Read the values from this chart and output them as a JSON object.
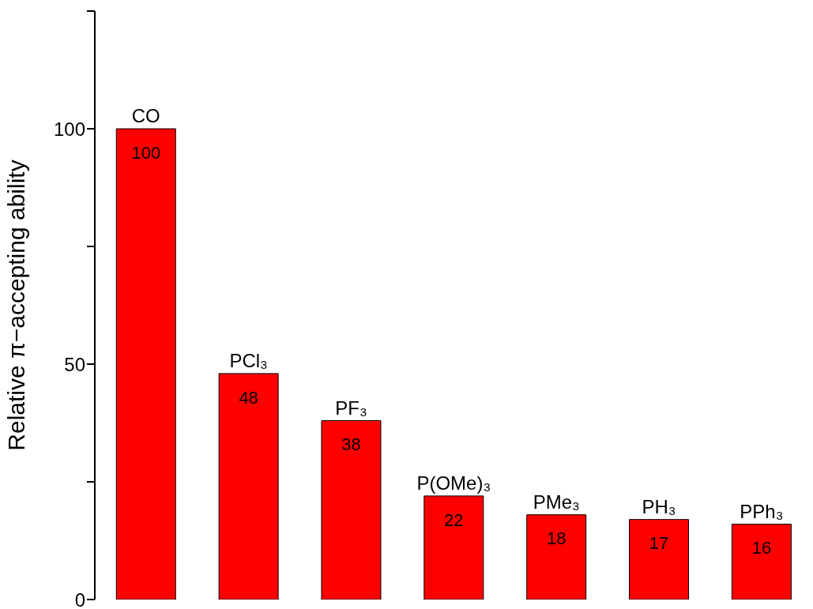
{
  "chart_data": {
    "type": "bar",
    "ylabel": "Relative π−accepting ability",
    "categories": [
      "CO",
      "PCl₃",
      "PF₃",
      "P(OMe)₃",
      "PMe₃",
      "PH₃",
      "PPh₃"
    ],
    "values": [
      100,
      48,
      38,
      22,
      18,
      17,
      16
    ],
    "color": "#ff0000",
    "ylim": [
      0,
      125
    ],
    "yticks": [
      0,
      {
        "value": 25,
        "label": null
      },
      50,
      {
        "value": 75,
        "label": null
      },
      100,
      {
        "value": 125,
        "label": null
      }
    ],
    "tick_labels": "y",
    "data_labels": true,
    "grid": false
  }
}
